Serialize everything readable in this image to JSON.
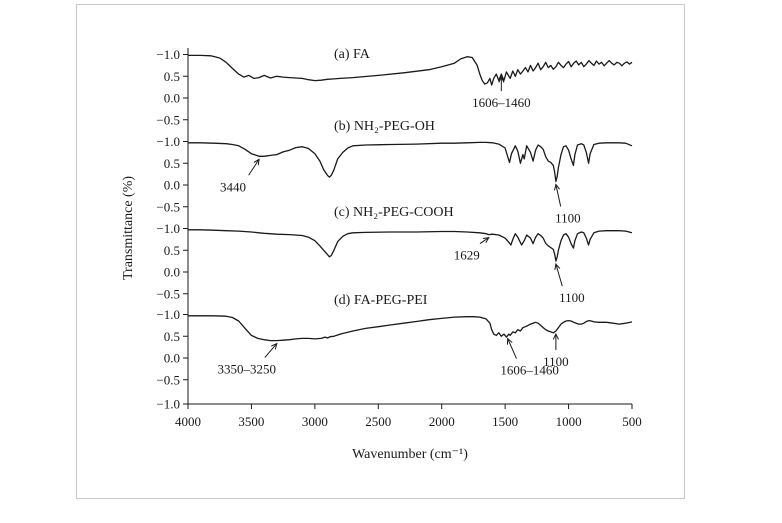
{
  "chart_data": {
    "type": "line",
    "xlabel": "Wavenumber (cm⁻¹)",
    "ylabel": "Transmittance (%)",
    "x_ticks": [
      4000,
      3500,
      3000,
      2500,
      2000,
      1500,
      1000,
      500
    ],
    "xlim": [
      4000,
      500
    ],
    "x_reversed": true,
    "panel_y_ticks": [
      "−1.0",
      "0.5",
      "0.0",
      "−0.5"
    ],
    "bottom_y_tick": "−1.0",
    "series": [
      {
        "name": "(a) FA",
        "x": [
          4000,
          3900,
          3820,
          3750,
          3700,
          3650,
          3600,
          3560,
          3520,
          3480,
          3440,
          3400,
          3350,
          3300,
          3250,
          3200,
          3150,
          3100,
          3050,
          3000,
          2950,
          2900,
          2850,
          2800,
          2700,
          2500,
          2300,
          2100,
          2000,
          1900,
          1850,
          1800,
          1760,
          1720,
          1700,
          1680,
          1660,
          1640,
          1620,
          1606,
          1590,
          1570,
          1550,
          1530,
          1510,
          1490,
          1470,
          1460,
          1440,
          1420,
          1400,
          1380,
          1360,
          1340,
          1320,
          1300,
          1280,
          1260,
          1240,
          1220,
          1200,
          1180,
          1160,
          1140,
          1120,
          1100,
          1080,
          1060,
          1040,
          1020,
          1000,
          980,
          960,
          940,
          920,
          900,
          880,
          860,
          840,
          820,
          800,
          780,
          760,
          740,
          720,
          700,
          680,
          660,
          640,
          620,
          600,
          580,
          560,
          540,
          520,
          500
        ],
        "y": [
          0.98,
          0.98,
          0.97,
          0.92,
          0.82,
          0.68,
          0.55,
          0.48,
          0.52,
          0.45,
          0.47,
          0.52,
          0.46,
          0.5,
          0.48,
          0.47,
          0.46,
          0.45,
          0.42,
          0.4,
          0.41,
          0.43,
          0.44,
          0.45,
          0.47,
          0.52,
          0.58,
          0.65,
          0.72,
          0.8,
          0.9,
          0.95,
          0.93,
          0.75,
          0.55,
          0.4,
          0.32,
          0.35,
          0.45,
          0.3,
          0.45,
          0.55,
          0.4,
          0.55,
          0.4,
          0.6,
          0.5,
          0.45,
          0.62,
          0.5,
          0.65,
          0.55,
          0.62,
          0.7,
          0.6,
          0.75,
          0.62,
          0.7,
          0.8,
          0.65,
          0.72,
          0.82,
          0.7,
          0.75,
          0.66,
          0.72,
          0.82,
          0.75,
          0.7,
          0.78,
          0.84,
          0.72,
          0.8,
          0.85,
          0.76,
          0.82,
          0.72,
          0.78,
          0.86,
          0.8,
          0.75,
          0.85,
          0.78,
          0.82,
          0.74,
          0.8,
          0.86,
          0.8,
          0.76,
          0.82,
          0.8,
          0.74,
          0.8,
          0.83,
          0.78,
          0.82
        ]
      },
      {
        "name": "(b) NH₂-PEG-OH",
        "x": [
          4000,
          3900,
          3800,
          3700,
          3650,
          3600,
          3550,
          3500,
          3440,
          3400,
          3350,
          3300,
          3250,
          3200,
          3150,
          3100,
          3050,
          3000,
          2960,
          2930,
          2900,
          2885,
          2870,
          2850,
          2820,
          2780,
          2740,
          2700,
          2600,
          2400,
          2200,
          2000,
          1900,
          1800,
          1700,
          1650,
          1600,
          1550,
          1500,
          1480,
          1466,
          1450,
          1420,
          1400,
          1380,
          1360,
          1350,
          1330,
          1300,
          1280,
          1260,
          1240,
          1220,
          1200,
          1180,
          1160,
          1140,
          1120,
          1110,
          1100,
          1090,
          1080,
          1060,
          1040,
          1020,
          1000,
          980,
          962,
          950,
          930,
          900,
          880,
          860,
          842,
          830,
          800,
          760,
          700,
          650,
          600,
          550,
          500
        ],
        "y": [
          0.97,
          0.97,
          0.96,
          0.95,
          0.93,
          0.9,
          0.82,
          0.72,
          0.66,
          0.66,
          0.68,
          0.7,
          0.76,
          0.8,
          0.86,
          0.88,
          0.84,
          0.72,
          0.55,
          0.35,
          0.22,
          0.18,
          0.22,
          0.35,
          0.6,
          0.75,
          0.85,
          0.9,
          0.92,
          0.93,
          0.94,
          0.96,
          0.96,
          0.97,
          0.98,
          0.98,
          0.97,
          0.94,
          0.85,
          0.65,
          0.52,
          0.72,
          0.9,
          0.78,
          0.5,
          0.7,
          0.6,
          0.9,
          0.75,
          0.55,
          0.8,
          0.92,
          0.88,
          0.82,
          0.65,
          0.55,
          0.52,
          0.45,
          0.3,
          0.08,
          0.2,
          0.4,
          0.7,
          0.88,
          0.9,
          0.8,
          0.6,
          0.45,
          0.7,
          0.92,
          0.95,
          0.92,
          0.75,
          0.5,
          0.72,
          0.93,
          0.96,
          0.97,
          0.97,
          0.97,
          0.96,
          0.9
        ]
      },
      {
        "name": "(c) NH₂-PEG-COOH",
        "x": [
          4000,
          3900,
          3800,
          3700,
          3600,
          3500,
          3440,
          3400,
          3300,
          3200,
          3100,
          3050,
          3000,
          2960,
          2930,
          2900,
          2885,
          2870,
          2850,
          2820,
          2780,
          2740,
          2700,
          2600,
          2400,
          2200,
          2000,
          1900,
          1800,
          1700,
          1650,
          1629,
          1600,
          1550,
          1500,
          1470,
          1455,
          1440,
          1420,
          1400,
          1370,
          1350,
          1330,
          1300,
          1280,
          1260,
          1240,
          1220,
          1200,
          1180,
          1160,
          1140,
          1120,
          1110,
          1100,
          1090,
          1080,
          1060,
          1040,
          1020,
          1000,
          980,
          962,
          950,
          930,
          900,
          880,
          860,
          842,
          830,
          800,
          760,
          700,
          650,
          600,
          550,
          500
        ],
        "y": [
          0.97,
          0.97,
          0.96,
          0.95,
          0.94,
          0.92,
          0.9,
          0.89,
          0.87,
          0.86,
          0.84,
          0.8,
          0.72,
          0.6,
          0.5,
          0.4,
          0.35,
          0.38,
          0.5,
          0.7,
          0.82,
          0.88,
          0.9,
          0.91,
          0.92,
          0.92,
          0.93,
          0.93,
          0.92,
          0.9,
          0.88,
          0.86,
          0.87,
          0.85,
          0.78,
          0.68,
          0.62,
          0.75,
          0.88,
          0.8,
          0.62,
          0.72,
          0.85,
          0.78,
          0.65,
          0.8,
          0.88,
          0.84,
          0.78,
          0.66,
          0.6,
          0.56,
          0.52,
          0.42,
          0.25,
          0.35,
          0.5,
          0.72,
          0.85,
          0.88,
          0.8,
          0.65,
          0.55,
          0.72,
          0.88,
          0.92,
          0.9,
          0.78,
          0.62,
          0.75,
          0.9,
          0.94,
          0.95,
          0.95,
          0.95,
          0.94,
          0.9
        ]
      },
      {
        "name": "(d) FA-PEG-PEI",
        "x": [
          4000,
          3900,
          3800,
          3700,
          3650,
          3600,
          3550,
          3500,
          3450,
          3400,
          3350,
          3300,
          3250,
          3200,
          3150,
          3100,
          3050,
          3000,
          2950,
          2920,
          2900,
          2880,
          2850,
          2800,
          2700,
          2600,
          2500,
          2400,
          2300,
          2200,
          2100,
          2000,
          1900,
          1800,
          1750,
          1700,
          1650,
          1620,
          1606,
          1590,
          1570,
          1550,
          1530,
          1510,
          1490,
          1470,
          1460,
          1440,
          1420,
          1400,
          1380,
          1360,
          1340,
          1320,
          1300,
          1280,
          1260,
          1240,
          1220,
          1200,
          1180,
          1160,
          1140,
          1120,
          1100,
          1080,
          1060,
          1040,
          1020,
          1000,
          980,
          960,
          940,
          920,
          900,
          880,
          860,
          840,
          820,
          800,
          760,
          700,
          650,
          600,
          550,
          500
        ],
        "y": [
          0.97,
          0.97,
          0.97,
          0.96,
          0.93,
          0.85,
          0.68,
          0.52,
          0.45,
          0.42,
          0.4,
          0.4,
          0.41,
          0.42,
          0.44,
          0.45,
          0.45,
          0.44,
          0.45,
          0.48,
          0.46,
          0.49,
          0.5,
          0.55,
          0.62,
          0.68,
          0.72,
          0.76,
          0.8,
          0.84,
          0.88,
          0.91,
          0.94,
          0.95,
          0.95,
          0.94,
          0.9,
          0.8,
          0.65,
          0.55,
          0.52,
          0.58,
          0.5,
          0.55,
          0.48,
          0.55,
          0.52,
          0.6,
          0.58,
          0.65,
          0.62,
          0.7,
          0.72,
          0.75,
          0.78,
          0.8,
          0.82,
          0.8,
          0.75,
          0.7,
          0.65,
          0.62,
          0.6,
          0.58,
          0.62,
          0.7,
          0.78,
          0.82,
          0.85,
          0.86,
          0.85,
          0.82,
          0.8,
          0.78,
          0.78,
          0.8,
          0.84,
          0.86,
          0.85,
          0.83,
          0.82,
          0.82,
          0.8,
          0.78,
          0.8,
          0.83
        ]
      }
    ],
    "annotations": [
      {
        "series": 0,
        "text": "1606–1460",
        "x": 1530
      },
      {
        "series": 1,
        "text": "3440",
        "x": 3440
      },
      {
        "series": 1,
        "text": "1100",
        "x": 1100
      },
      {
        "series": 2,
        "text": "1629",
        "x": 1629
      },
      {
        "series": 2,
        "text": "1100",
        "x": 1100
      },
      {
        "series": 3,
        "text": "3350–3250",
        "x": 3300
      },
      {
        "series": 3,
        "text": "1606–1460",
        "x": 1480
      },
      {
        "series": 3,
        "text": "1100",
        "x": 1100
      }
    ]
  }
}
